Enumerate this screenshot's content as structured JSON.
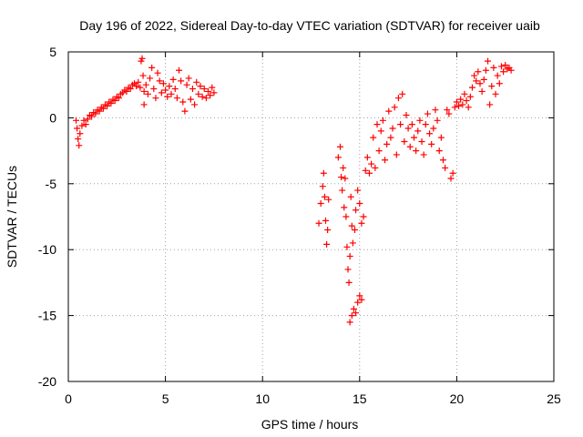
{
  "chart_data": {
    "type": "scatter",
    "title": "Day 196 of 2022, Sidereal Day-to-day VTEC variation (SDTVAR) for receiver uaib",
    "xlabel": "GPS time / hours",
    "ylabel": "SDTVAR / TECUs",
    "xlim": [
      0,
      25
    ],
    "ylim": [
      -20,
      5
    ],
    "xticks": [
      "0",
      "5",
      "10",
      "15",
      "20",
      "25"
    ],
    "yticks": [
      "5",
      "0",
      "-5",
      "-10",
      "-15",
      "-20"
    ],
    "grid": true,
    "marker": "+",
    "series_color": "#ff0000",
    "series": [
      {
        "name": "SDTVAR",
        "points": [
          [
            0.4,
            -0.2
          ],
          [
            0.45,
            -0.8
          ],
          [
            0.5,
            -1.6
          ],
          [
            0.55,
            -2.1
          ],
          [
            0.6,
            -1.2
          ],
          [
            0.7,
            -0.6
          ],
          [
            0.8,
            -0.2
          ],
          [
            0.9,
            -0.5
          ],
          [
            1.0,
            -0.1
          ],
          [
            1.1,
            0.2
          ],
          [
            1.2,
            0.1
          ],
          [
            1.3,
            0.4
          ],
          [
            1.4,
            0.3
          ],
          [
            1.5,
            0.6
          ],
          [
            1.6,
            0.5
          ],
          [
            1.7,
            0.8
          ],
          [
            1.8,
            0.7
          ],
          [
            1.9,
            1.0
          ],
          [
            2.0,
            0.9
          ],
          [
            2.1,
            1.2
          ],
          [
            2.2,
            1.1
          ],
          [
            2.3,
            1.4
          ],
          [
            2.4,
            1.3
          ],
          [
            2.5,
            1.6
          ],
          [
            2.6,
            1.5
          ],
          [
            2.7,
            1.8
          ],
          [
            2.8,
            1.9
          ],
          [
            2.9,
            2.1
          ],
          [
            3.0,
            2.0
          ],
          [
            3.1,
            2.3
          ],
          [
            3.2,
            2.2
          ],
          [
            3.3,
            2.5
          ],
          [
            3.4,
            2.6
          ],
          [
            3.5,
            2.4
          ],
          [
            3.6,
            2.7
          ],
          [
            3.7,
            2.3
          ],
          [
            3.75,
            4.3
          ],
          [
            3.8,
            4.5
          ],
          [
            3.85,
            3.2
          ],
          [
            3.9,
            2.0
          ],
          [
            3.9,
            1.0
          ],
          [
            4.0,
            2.5
          ],
          [
            4.1,
            1.8
          ],
          [
            4.2,
            3.0
          ],
          [
            4.3,
            3.8
          ],
          [
            4.4,
            2.2
          ],
          [
            4.5,
            1.5
          ],
          [
            4.6,
            3.4
          ],
          [
            4.7,
            2.8
          ],
          [
            4.8,
            1.9
          ],
          [
            4.9,
            2.6
          ],
          [
            5.0,
            2.1
          ],
          [
            5.1,
            1.6
          ],
          [
            5.2,
            2.4
          ],
          [
            5.3,
            1.8
          ],
          [
            5.4,
            2.9
          ],
          [
            5.5,
            2.2
          ],
          [
            5.6,
            1.5
          ],
          [
            5.7,
            3.6
          ],
          [
            5.8,
            2.8
          ],
          [
            5.9,
            1.2
          ],
          [
            6.0,
            0.5
          ],
          [
            6.1,
            2.5
          ],
          [
            6.2,
            3.0
          ],
          [
            6.3,
            1.4
          ],
          [
            6.4,
            2.2
          ],
          [
            6.5,
            1.0
          ],
          [
            6.6,
            2.7
          ],
          [
            6.7,
            1.8
          ],
          [
            6.8,
            2.4
          ],
          [
            6.9,
            1.6
          ],
          [
            7.0,
            2.2
          ],
          [
            7.1,
            1.5
          ],
          [
            7.2,
            2.0
          ],
          [
            7.3,
            1.7
          ],
          [
            7.4,
            2.3
          ],
          [
            7.5,
            1.9
          ],
          [
            12.9,
            -8.0
          ],
          [
            13.0,
            -6.5
          ],
          [
            13.1,
            -5.2
          ],
          [
            13.15,
            -4.2
          ],
          [
            13.2,
            -6.0
          ],
          [
            13.25,
            -7.8
          ],
          [
            13.3,
            -9.6
          ],
          [
            13.35,
            -8.5
          ],
          [
            13.4,
            -6.2
          ],
          [
            13.9,
            -3.0
          ],
          [
            14.0,
            -2.2
          ],
          [
            14.05,
            -4.5
          ],
          [
            14.1,
            -5.5
          ],
          [
            14.15,
            -3.8
          ],
          [
            14.2,
            -6.8
          ],
          [
            14.25,
            -4.6
          ],
          [
            14.3,
            -7.5
          ],
          [
            14.35,
            -9.8
          ],
          [
            14.4,
            -11.5
          ],
          [
            14.45,
            -12.5
          ],
          [
            14.5,
            -10.5
          ],
          [
            14.55,
            -6.0
          ],
          [
            14.6,
            -8.2
          ],
          [
            14.65,
            -9.5
          ],
          [
            14.5,
            -15.5
          ],
          [
            14.6,
            -15.0
          ],
          [
            14.7,
            -14.5
          ],
          [
            14.8,
            -14.8
          ],
          [
            14.9,
            -14.0
          ],
          [
            15.0,
            -13.5
          ],
          [
            15.1,
            -13.8
          ],
          [
            14.75,
            -8.5
          ],
          [
            14.8,
            -7.0
          ],
          [
            14.9,
            -5.5
          ],
          [
            15.0,
            -6.5
          ],
          [
            15.1,
            -8.0
          ],
          [
            15.2,
            -7.5
          ],
          [
            15.3,
            -4.0
          ],
          [
            15.4,
            -3.0
          ],
          [
            15.5,
            -4.2
          ],
          [
            15.6,
            -3.5
          ],
          [
            15.7,
            -1.5
          ],
          [
            15.8,
            -3.8
          ],
          [
            15.9,
            -0.5
          ],
          [
            16.0,
            -2.5
          ],
          [
            16.1,
            -1.0
          ],
          [
            16.2,
            -0.2
          ],
          [
            16.3,
            -3.2
          ],
          [
            16.4,
            -2.0
          ],
          [
            16.5,
            0.5
          ],
          [
            16.6,
            -1.5
          ],
          [
            16.7,
            -0.8
          ],
          [
            16.8,
            0.8
          ],
          [
            16.9,
            -2.8
          ],
          [
            17.0,
            1.5
          ],
          [
            17.1,
            -0.5
          ],
          [
            17.2,
            1.8
          ],
          [
            17.3,
            -1.8
          ],
          [
            17.4,
            0.2
          ],
          [
            17.5,
            -0.8
          ],
          [
            17.6,
            -2.2
          ],
          [
            17.7,
            -0.5
          ],
          [
            17.8,
            -1.5
          ],
          [
            17.9,
            -2.5
          ],
          [
            18.0,
            -1.0
          ],
          [
            18.1,
            -0.2
          ],
          [
            18.2,
            -1.8
          ],
          [
            18.3,
            -2.8
          ],
          [
            18.4,
            -0.5
          ],
          [
            18.5,
            0.3
          ],
          [
            18.6,
            -1.2
          ],
          [
            18.7,
            -2.0
          ],
          [
            18.8,
            -0.8
          ],
          [
            18.9,
            0.6
          ],
          [
            19.0,
            -0.2
          ],
          [
            19.1,
            -2.5
          ],
          [
            19.2,
            -1.5
          ],
          [
            19.3,
            -3.2
          ],
          [
            19.4,
            -3.8
          ],
          [
            19.5,
            0.6
          ],
          [
            19.6,
            0.3
          ],
          [
            19.7,
            -4.6
          ],
          [
            19.8,
            -4.2
          ],
          [
            19.9,
            0.8
          ],
          [
            20.0,
            1.2
          ],
          [
            20.1,
            0.9
          ],
          [
            20.2,
            1.4
          ],
          [
            20.3,
            1.0
          ],
          [
            20.4,
            1.8
          ],
          [
            20.5,
            1.3
          ],
          [
            20.6,
            0.8
          ],
          [
            20.7,
            1.6
          ],
          [
            20.8,
            2.3
          ],
          [
            20.9,
            3.2
          ],
          [
            21.0,
            2.8
          ],
          [
            21.1,
            3.5
          ],
          [
            21.2,
            2.6
          ],
          [
            21.3,
            2.0
          ],
          [
            21.4,
            2.9
          ],
          [
            21.5,
            3.6
          ],
          [
            21.6,
            4.3
          ],
          [
            21.7,
            1.0
          ],
          [
            21.8,
            2.4
          ],
          [
            21.9,
            3.8
          ],
          [
            22.0,
            1.8
          ],
          [
            22.1,
            3.2
          ],
          [
            22.2,
            2.6
          ],
          [
            22.3,
            3.9
          ],
          [
            22.4,
            3.5
          ],
          [
            22.5,
            4.0
          ],
          [
            22.6,
            3.7
          ],
          [
            22.7,
            3.8
          ],
          [
            22.8,
            3.6
          ]
        ]
      }
    ]
  }
}
